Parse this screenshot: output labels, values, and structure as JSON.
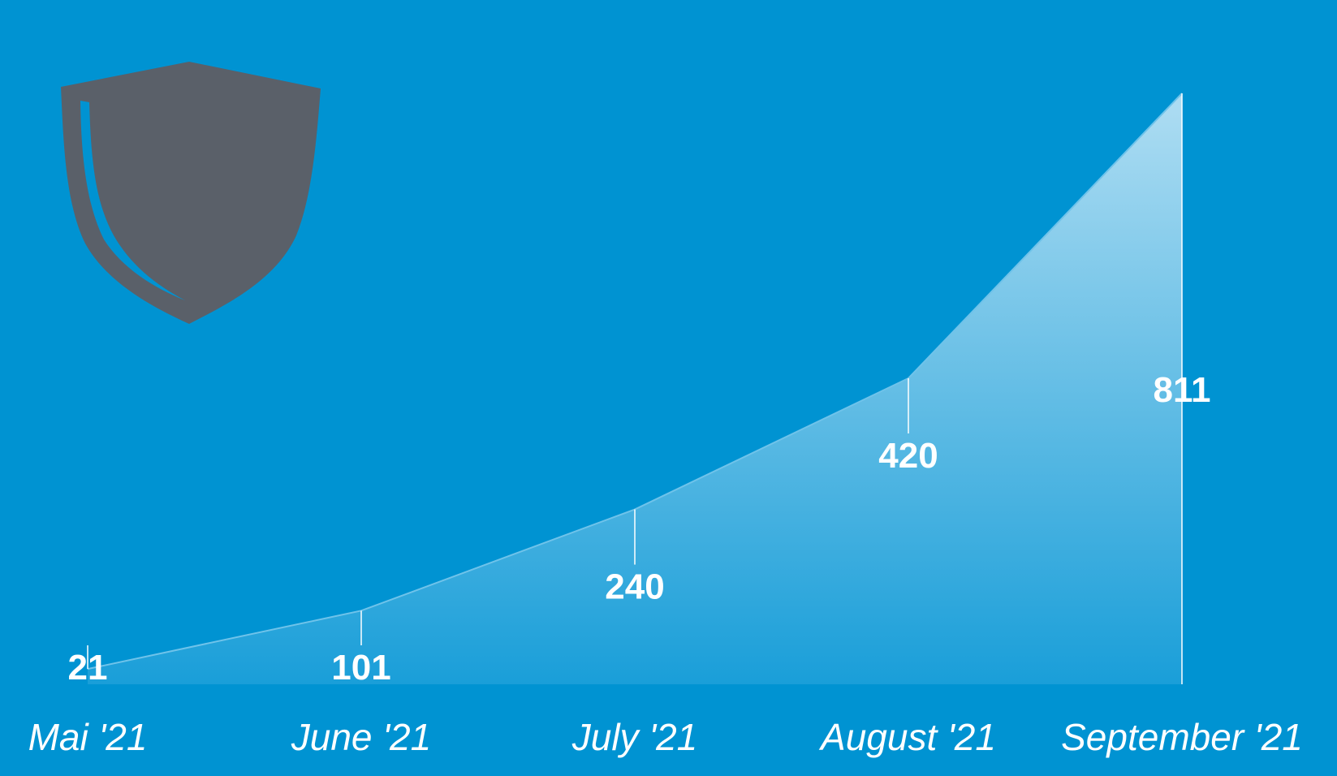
{
  "colors": {
    "background": "#0093d2",
    "area_top": "#b8e1f4",
    "area_bottom": "#1b9fd9",
    "line": "#6fc3ea",
    "shield": "#5a6069",
    "shield_stripe": "#0093d2",
    "text": "#ffffff"
  },
  "logo": {
    "icon": "shield-icon"
  },
  "chart_data": {
    "type": "area",
    "categories": [
      "Mai '21",
      "June '21",
      "July '21",
      "August '21",
      "September '21"
    ],
    "values": [
      21,
      101,
      240,
      420,
      811
    ],
    "data_labels": [
      "21",
      "101",
      "240",
      "420",
      "811"
    ],
    "title": "",
    "xlabel": "",
    "ylabel": "",
    "ylim": [
      0,
      811
    ],
    "grid": false,
    "legend": "none"
  }
}
